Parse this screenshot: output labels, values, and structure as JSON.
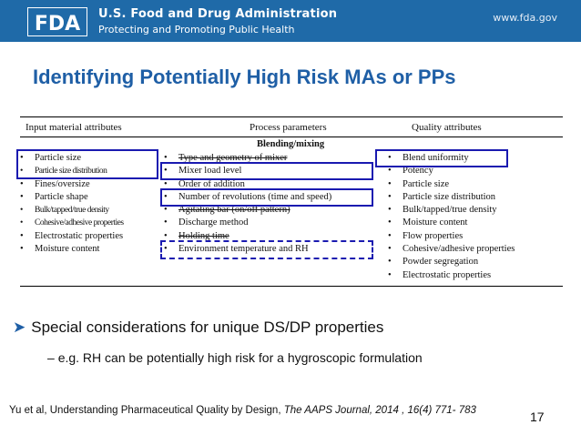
{
  "header": {
    "logo_icon": "fda-logo-icon",
    "org_name": "U.S. Food and Drug Administration",
    "tagline": "Protecting and Promoting Public Health",
    "url": "www.fda.gov",
    "bg_color": "#1f6aa8"
  },
  "title": "Identifying Potentially High Risk MAs or PPs",
  "table": {
    "headers": [
      "Input material attributes",
      "Process parameters",
      "Quality attributes"
    ],
    "subheading": "Blending/mixing",
    "input_attributes": [
      "Particle size",
      "Particle size distribution",
      "Fines/oversize",
      "Particle shape",
      "Bulk/tapped/true density",
      "Cohesive/adhesive properties",
      "Electrostatic properties",
      "Moisture content"
    ],
    "process_parameters": [
      "Type and geometry of mixer",
      "Mixer load level",
      "Order of addition",
      "Number of revolutions (time and speed)",
      "Agitating bar (on/off pattern)",
      "Discharge method",
      "Holding time",
      "Environment temperature and RH"
    ],
    "quality_attributes": [
      "Blend uniformity",
      "Potency",
      "Particle size",
      "Particle size distribution",
      "Bulk/tapped/true density",
      "Moisture content",
      "Flow properties",
      "Cohesive/adhesive properties",
      "Powder segregation",
      "Electrostatic properties"
    ]
  },
  "bullet": {
    "text": "Special considerations for unique DS/DP properties",
    "sub": "e.g. RH can be potentially high risk for a hygroscopic formulation"
  },
  "citation": {
    "text": "Yu et al, Understanding Pharmaceutical Quality by Design, ",
    "journal": "The AAPS Journal, 2014 , 16(4) 771- 783"
  },
  "page_number": "17"
}
